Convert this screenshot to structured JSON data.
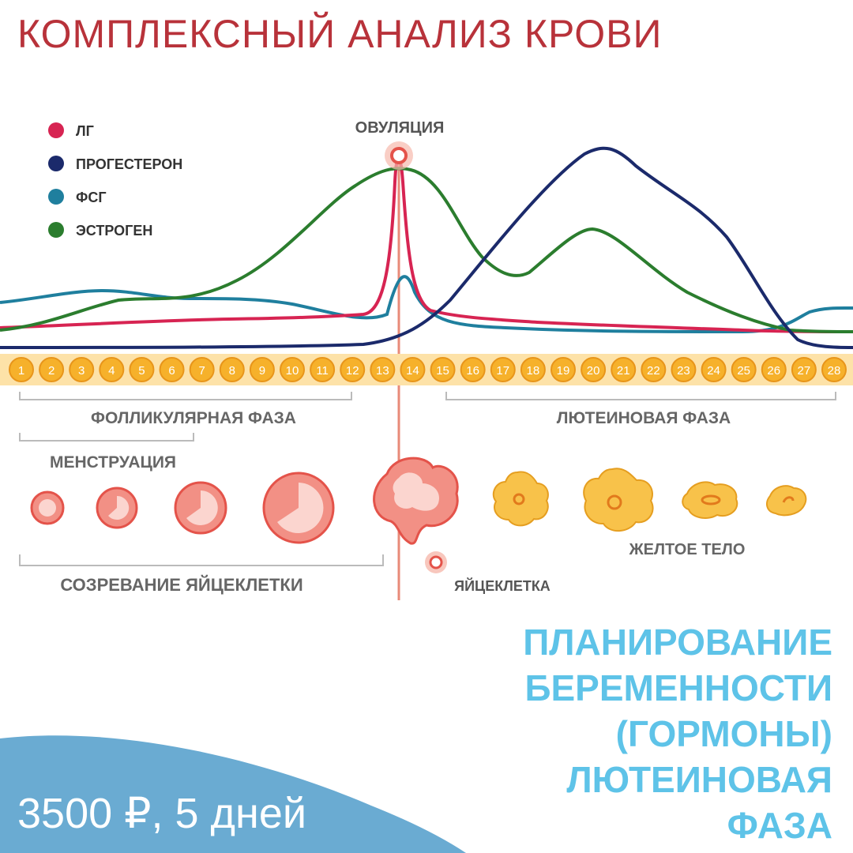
{
  "title": "КОМПЛЕКСНЫЙ АНАЛИЗ КРОВИ",
  "legend": [
    {
      "label": "ЛГ",
      "color": "#d72452"
    },
    {
      "label": "ПРОГЕСТЕРОН",
      "color": "#1b2a6b"
    },
    {
      "label": "ФСГ",
      "color": "#1f7f9e"
    },
    {
      "label": "ЭСТРОГЕН",
      "color": "#2b7d2e"
    }
  ],
  "ovulation_label": "ОВУЛЯЦИЯ",
  "days": [
    "1",
    "2",
    "3",
    "4",
    "5",
    "6",
    "7",
    "8",
    "9",
    "10",
    "11",
    "12",
    "13",
    "14",
    "15",
    "16",
    "17",
    "18",
    "19",
    "20",
    "21",
    "22",
    "23",
    "24",
    "25",
    "26",
    "27",
    "28"
  ],
  "phases": {
    "follicular": "ФОЛЛИКУЛЯРНАЯ ФАЗА",
    "luteal": "ЛЮТЕИНОВАЯ ФАЗА",
    "menstruation": "МЕНСТРУАЦИЯ",
    "maturation": "СОЗРЕВАНИЕ ЯЙЦЕКЛЕТКИ",
    "egg": "ЯЙЦЕКЛЕТКА",
    "corpus_luteum": "ЖЕЛТОЕ ТЕЛО"
  },
  "promo": [
    "ПЛАНИРОВАНИЕ",
    "БЕРЕМЕННОСТИ",
    "(ГОРМОНЫ)",
    "ЛЮТЕИНОВАЯ",
    "ФАЗА"
  ],
  "price": "3500 ₽, 5 дней",
  "colors": {
    "title": "#b8323a",
    "promo": "#5ec3e8",
    "banner": "#6aabd2",
    "day_fill": "#f6b12b",
    "follicle": "#ec7a70",
    "corpus": "#f8c24a",
    "ovulation_line": "#e88a78"
  }
}
